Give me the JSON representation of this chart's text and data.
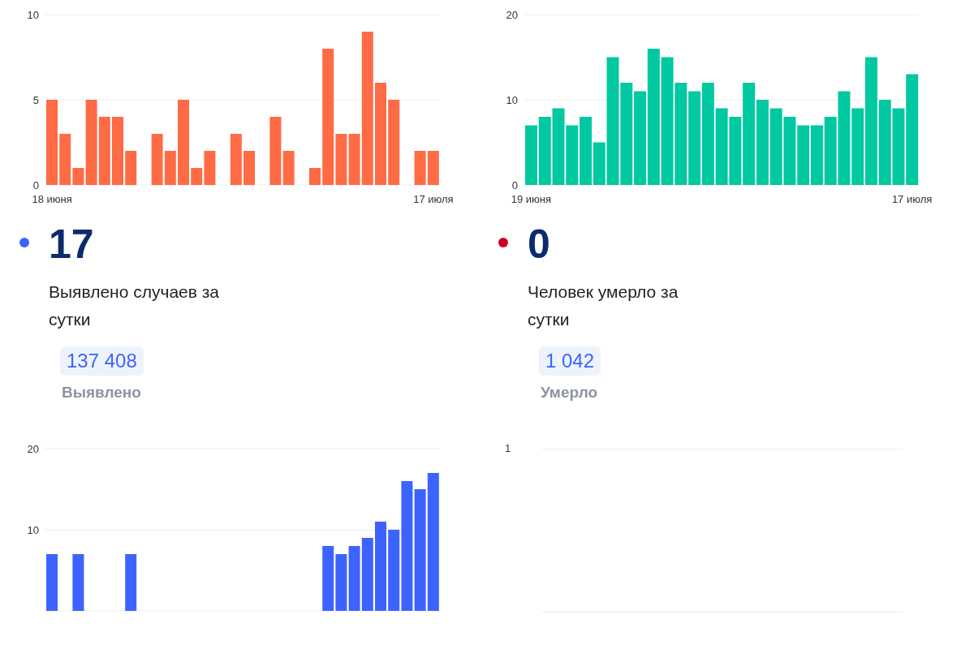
{
  "chart_data": [
    {
      "type": "bar",
      "categories": [
        "18 июня",
        null,
        null,
        null,
        null,
        null,
        null,
        null,
        null,
        null,
        null,
        null,
        null,
        null,
        null,
        null,
        null,
        null,
        null,
        null,
        null,
        null,
        null,
        null,
        null,
        null,
        null,
        null,
        null,
        "17 июля"
      ],
      "values": [
        5,
        3,
        1,
        5,
        4,
        4,
        2,
        0,
        3,
        2,
        5,
        1,
        2,
        0,
        3,
        2,
        0,
        4,
        2,
        0,
        1,
        8,
        3,
        3,
        9,
        6,
        5,
        0,
        2,
        2
      ],
      "color": "#ff6b45",
      "ylim": [
        0,
        10
      ],
      "yticks": [
        0,
        5,
        10
      ],
      "grid": "y"
    },
    {
      "type": "bar",
      "categories": [
        "19 июня",
        null,
        null,
        null,
        null,
        null,
        null,
        null,
        null,
        null,
        null,
        null,
        null,
        null,
        null,
        null,
        null,
        null,
        null,
        null,
        null,
        null,
        null,
        null,
        null,
        null,
        null,
        null,
        "17 июля"
      ],
      "values": [
        7,
        8,
        9,
        7,
        8,
        5,
        15,
        12,
        11,
        16,
        15,
        12,
        11,
        12,
        9,
        8,
        12,
        10,
        9,
        8,
        7,
        7,
        8,
        11,
        9,
        15,
        10,
        9,
        13
      ],
      "color": "#00c8a0",
      "ylim": [
        0,
        20
      ],
      "yticks": [
        0,
        10,
        20
      ],
      "grid": "y"
    },
    {
      "type": "other",
      "title": "17",
      "subtitle": "Выявлено случаев за сутки",
      "annotations": [
        "137 408",
        "Выявлено"
      ],
      "color": "#3d63ff"
    },
    {
      "type": "other",
      "title": "0",
      "subtitle": "Человек умерло за сутки",
      "annotations": [
        "1 042",
        "Умерло"
      ],
      "color": "#d0021b"
    },
    {
      "type": "bar",
      "categories": [
        null,
        null,
        null,
        null,
        null,
        null,
        null,
        null,
        null,
        null,
        null,
        null,
        null,
        null,
        null,
        null,
        null,
        null,
        null,
        null,
        null,
        null,
        null,
        null,
        null,
        null,
        null,
        null,
        null,
        null
      ],
      "values": [
        7,
        null,
        7,
        null,
        null,
        null,
        7,
        null,
        null,
        null,
        null,
        null,
        null,
        null,
        null,
        null,
        null,
        null,
        null,
        null,
        null,
        8,
        7,
        8,
        9,
        11,
        10,
        16,
        15,
        17
      ],
      "color": "#3d63ff",
      "ylim": [
        0,
        20
      ],
      "yticks": [
        {
          "value": 0,
          "label": null
        },
        10,
        20
      ],
      "grid": "y"
    },
    {
      "type": "other",
      "annotations": [
        "1"
      ]
    }
  ]
}
